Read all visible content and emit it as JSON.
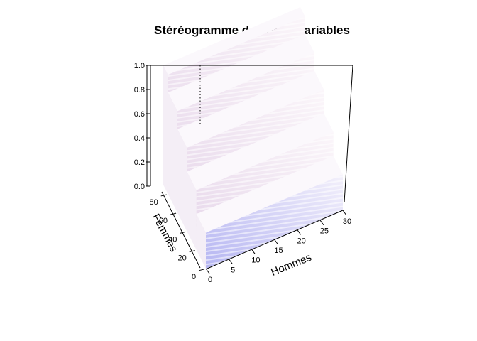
{
  "chart_data": {
    "type": "3d-step-surface",
    "title": "Stéréogramme des deux variables",
    "x": {
      "label": "Hommes",
      "range": [
        0,
        30
      ],
      "ticks": [
        "0",
        "5",
        "10",
        "15",
        "20",
        "25",
        "30"
      ]
    },
    "y": {
      "label": "Femmes",
      "range": [
        0,
        90
      ],
      "ticks": [
        "0",
        "20",
        "40",
        "60",
        "80"
      ]
    },
    "z": {
      "range": [
        0,
        1
      ],
      "ticks": [
        "0.0",
        "0.2",
        "0.4",
        "0.6",
        "0.8",
        "1.0"
      ]
    },
    "steps": [
      {
        "femmes_from": 0,
        "value": 0.3
      },
      {
        "femmes_from": 20,
        "value": 0.5
      },
      {
        "femmes_from": 40,
        "value": 0.7
      },
      {
        "femmes_from": 60,
        "value": 0.85
      },
      {
        "femmes_from": 80,
        "value": 1.0
      }
    ],
    "colors": {
      "low": "#b8b8f4",
      "high": "#f0e0e8",
      "frame": "#000000"
    }
  }
}
